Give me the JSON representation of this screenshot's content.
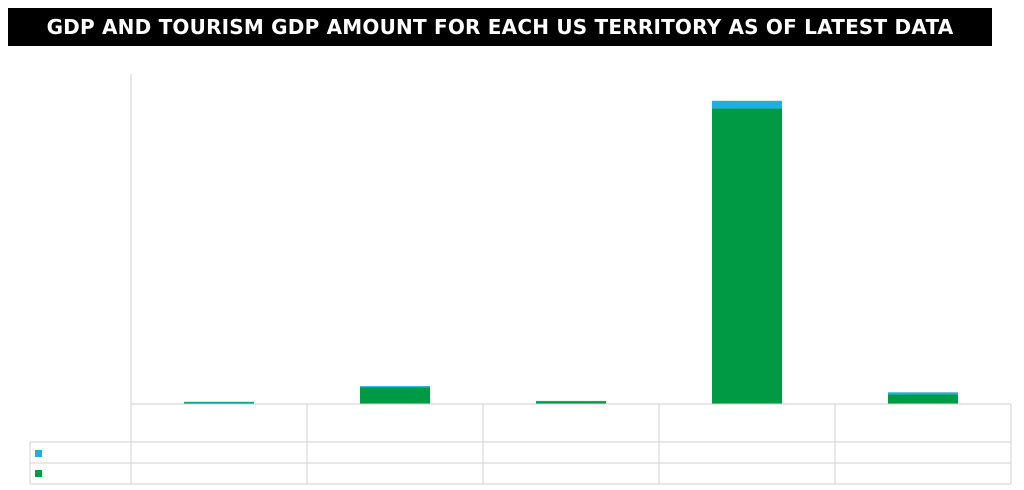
{
  "title": "GDP AND TOURISM GDP AMOUNT FOR EACH US TERRITORY AS OF LATEST DATA",
  "colors": {
    "series_top": "#1ab0e0",
    "series_bottom": "#009a44",
    "axis": "#d0d0d0",
    "title_bg": "#000000",
    "title_fg": "#ffffff"
  },
  "chart_data": {
    "type": "bar",
    "stacked": true,
    "title": "GDP AND TOURISM GDP AMOUNT FOR EACH US TERRITORY AS OF LATEST DATA",
    "categories": [
      "",
      "",
      "",
      "",
      ""
    ],
    "series": [
      {
        "values": [
          0.3,
          2.4,
          0.4,
          43.0,
          1.4
        ]
      },
      {
        "values": [
          0.01,
          0.2,
          0.05,
          1.1,
          0.3
        ]
      }
    ],
    "ylim": [
      0,
      48
    ],
    "grid": false,
    "legend": "table-below"
  }
}
